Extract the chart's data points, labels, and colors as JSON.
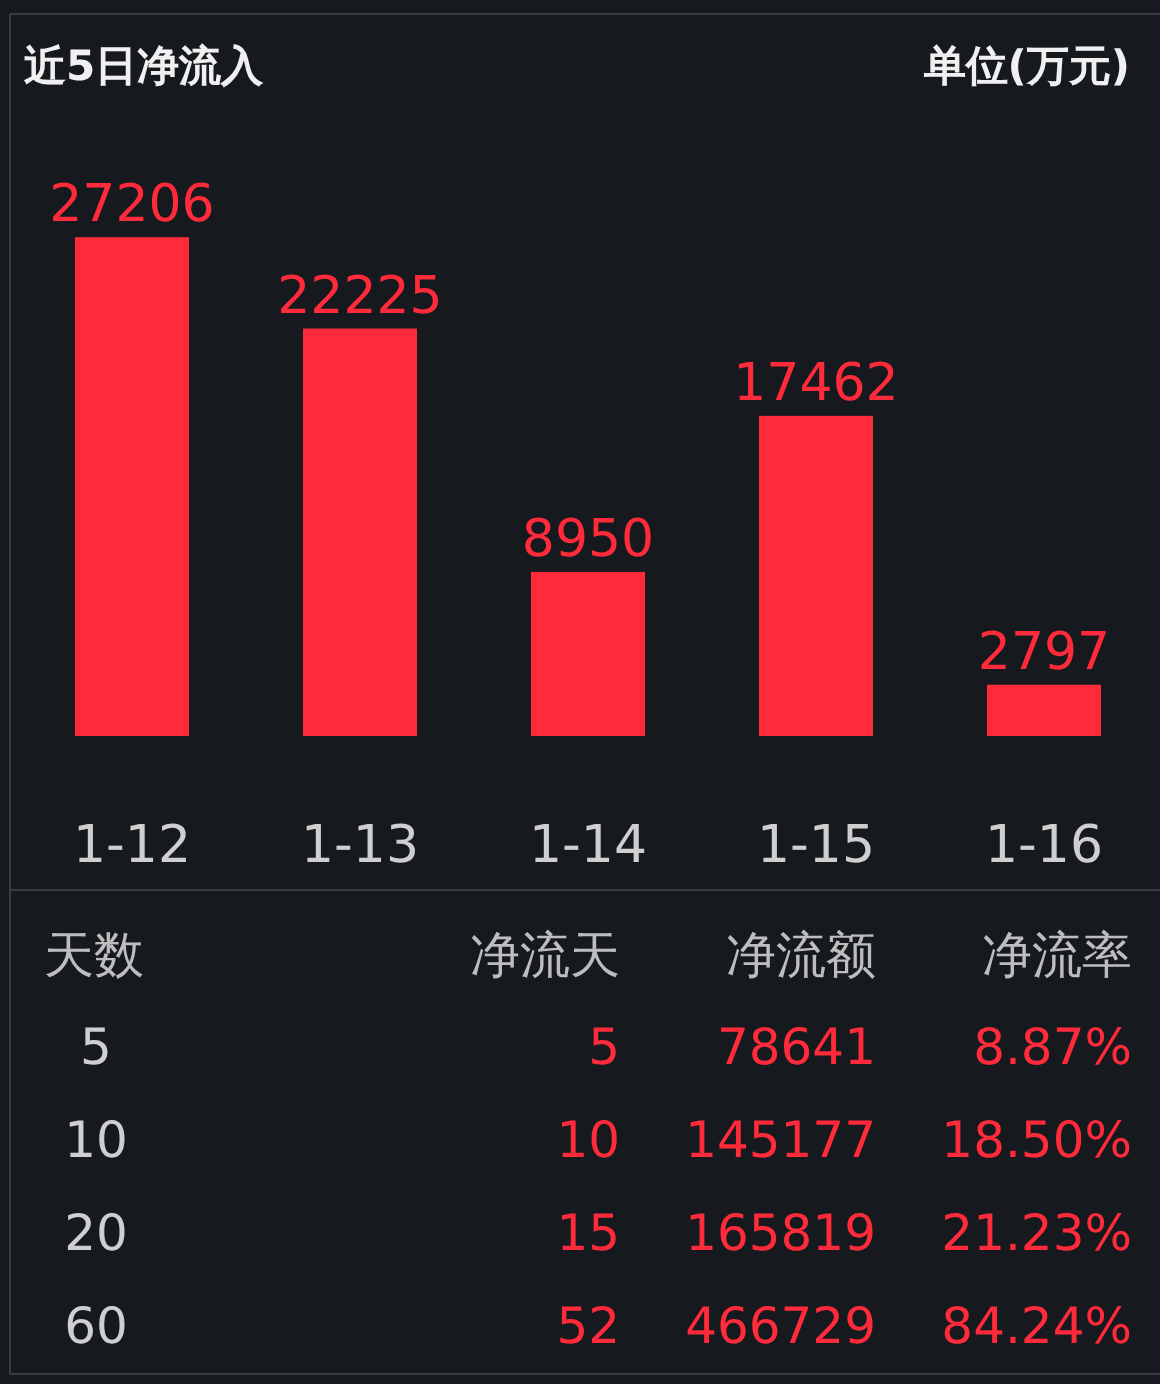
{
  "chart_data": [
    {
      "type": "bar",
      "title": "近5日净流入",
      "annotations": [
        "单位(万元)"
      ],
      "categories": [
        "1-12",
        "1-13",
        "1-14",
        "1-15",
        "1-16"
      ],
      "values": [
        27206,
        22225,
        8950,
        17462,
        2797
      ],
      "color": "#ff2a3a",
      "data_labels": true,
      "tick_labels": "x"
    },
    {
      "type": "other",
      "categories": [
        "天数",
        "净流天",
        "净流额",
        "净流率"
      ],
      "annotations": [
        "5",
        "5",
        "78641",
        "8.87%",
        "10",
        "10",
        "145177",
        "18.50%",
        "20",
        "15",
        "165819",
        "21.23%",
        "60",
        "52",
        "466729",
        "84.24%"
      ]
    }
  ]
}
